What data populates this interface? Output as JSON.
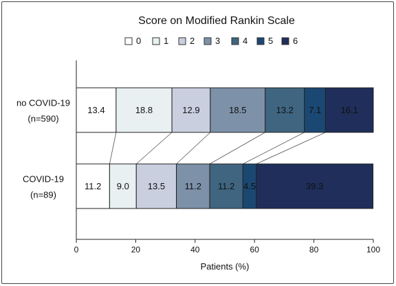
{
  "chart_data": {
    "type": "bar",
    "stacked": true,
    "orientation": "horizontal",
    "title": "Score on Modified Rankin Scale",
    "xlabel": "Patients (%)",
    "ylabel": "",
    "xlim": [
      0,
      100
    ],
    "xticks": [
      "0",
      "20",
      "40",
      "60",
      "80",
      "100"
    ],
    "legend_position": "top",
    "categories": [
      {
        "line1": "no COVID-19",
        "line2": "(n=590)"
      },
      {
        "line1": "COVID-19",
        "line2": "(n=89)"
      }
    ],
    "series": [
      {
        "name": "0",
        "color": "#ffffff",
        "values": [
          13.4,
          11.2
        ],
        "labels": [
          "13.4",
          "11.2"
        ]
      },
      {
        "name": "1",
        "color": "#e8f0f2",
        "values": [
          18.8,
          9.0
        ],
        "labels": [
          "18.8",
          "9.0"
        ]
      },
      {
        "name": "2",
        "color": "#c9cfdf",
        "values": [
          12.9,
          13.5
        ],
        "labels": [
          "12.9",
          "13.5"
        ]
      },
      {
        "name": "3",
        "color": "#7d91a8",
        "values": [
          18.5,
          11.2
        ],
        "labels": [
          "18.5",
          "11.2"
        ]
      },
      {
        "name": "4",
        "color": "#3f6580",
        "values": [
          13.2,
          11.2
        ],
        "labels": [
          "13.2",
          "11.2"
        ]
      },
      {
        "name": "5",
        "color": "#1b4872",
        "values": [
          7.1,
          4.5
        ],
        "labels": [
          "7.1",
          "4.5"
        ]
      },
      {
        "name": "6",
        "color": "#1f2e5a",
        "values": [
          16.1,
          39.3
        ],
        "labels": [
          "16.1",
          "39.3"
        ]
      }
    ],
    "grid": false,
    "connector_lines": true
  }
}
